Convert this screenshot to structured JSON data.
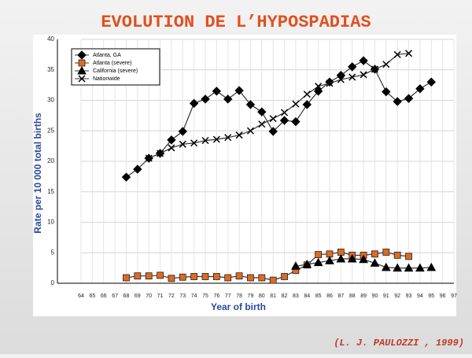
{
  "title": "EVOLUTION DE L’HYPOSPADIAS",
  "citation": "(L. J. PAULOZZI , 1999)",
  "chart_data": {
    "type": "line",
    "ylabel": "Rate per 10 000 total births",
    "xlabel": "Year of birth",
    "x": [
      68,
      69,
      70,
      71,
      72,
      73,
      74,
      75,
      76,
      77,
      78,
      79,
      80,
      81,
      82,
      83,
      84,
      85,
      86,
      87,
      88,
      89,
      90,
      91,
      92,
      93,
      94,
      95
    ],
    "xlim": [
      64,
      97
    ],
    "xticks": [
      64,
      65,
      66,
      67,
      68,
      69,
      70,
      71,
      72,
      73,
      74,
      75,
      76,
      77,
      78,
      79,
      80,
      81,
      82,
      83,
      84,
      85,
      86,
      87,
      88,
      89,
      90,
      91,
      92,
      93,
      94,
      95,
      96,
      97
    ],
    "ylim": [
      0,
      40
    ],
    "yticks": [
      0,
      5,
      10,
      15,
      20,
      25,
      30,
      35,
      40
    ],
    "grid": true,
    "legend": "top-left",
    "series": [
      {
        "name": "Atlanta, GA",
        "color": "#000000",
        "marker": "diamond",
        "values": [
          17.4,
          18.7,
          20.5,
          21.3,
          23.5,
          24.9,
          29.5,
          30.2,
          31.5,
          30.2,
          31.6,
          29.3,
          28.1,
          24.9,
          26.7,
          26.5,
          29.3,
          31.5,
          33.0,
          34.1,
          35.5,
          36.5,
          35.1,
          31.4,
          29.8,
          30.3,
          31.9,
          33.0
        ]
      },
      {
        "name": "Atlanta (severe)",
        "color": "#e06a20",
        "marker": "square",
        "values": [
          0.9,
          1.2,
          1.2,
          1.3,
          0.8,
          1.0,
          1.1,
          1.1,
          1.1,
          0.9,
          1.2,
          0.9,
          0.9,
          0.5,
          1.1,
          2.1,
          3.0,
          4.7,
          4.8,
          5.1,
          4.6,
          4.6,
          4.8,
          5.1,
          4.6,
          4.4,
          null,
          null
        ]
      },
      {
        "name": "California (severe)",
        "color": "#000000",
        "marker": "triangle",
        "values": [
          null,
          null,
          null,
          null,
          null,
          null,
          null,
          null,
          null,
          null,
          null,
          null,
          null,
          null,
          null,
          2.8,
          3.1,
          3.4,
          3.7,
          4.0,
          4.0,
          3.9,
          3.3,
          2.6,
          2.5,
          2.5,
          2.5,
          2.6
        ]
      },
      {
        "name": "Nationwide",
        "color": "#000000",
        "marker": "cross",
        "values": [
          null,
          null,
          20.5,
          21.3,
          22.2,
          22.8,
          23.0,
          23.4,
          23.6,
          23.9,
          24.3,
          25.0,
          26.1,
          27.0,
          28.0,
          29.4,
          31.0,
          32.3,
          32.8,
          33.4,
          33.8,
          34.2,
          35.1,
          35.9,
          37.5,
          37.7,
          null,
          null
        ]
      }
    ]
  }
}
